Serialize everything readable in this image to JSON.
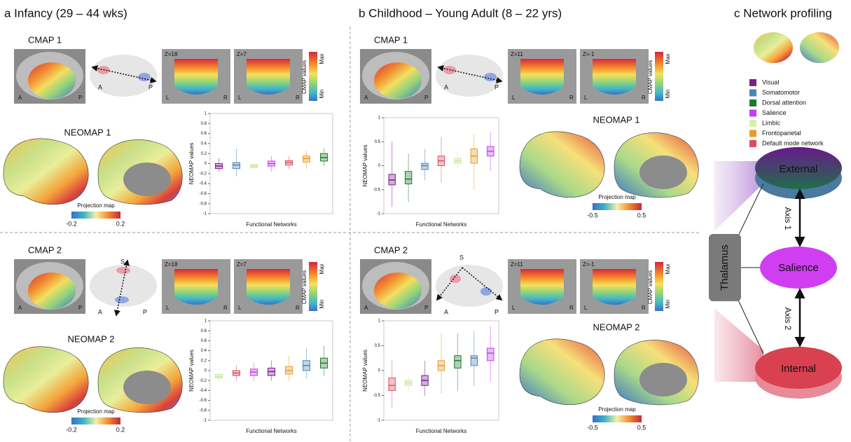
{
  "panels": [
    {
      "title": "a Infancy (29 – 44 wks)"
    },
    {
      "title": "b Childhood – Young Adult (8 – 22 yrs)"
    },
    {
      "title": "c Network profiling"
    }
  ],
  "labels": {
    "cmap1": "CMAP 1",
    "cmap2": "CMAP 2",
    "neomap1": "NEOMAP 1",
    "neomap2": "NEOMAP 2",
    "anterior": "A",
    "posterior": "P",
    "superior": "S",
    "left": "L",
    "right": "R",
    "cmap_values": "CMAP values",
    "max": "Max",
    "min": "Min",
    "projection_map": "Projection map"
  },
  "slices": {
    "a": [
      "Z=18",
      "Z=7"
    ],
    "b": [
      "Z=11",
      "Z=-1"
    ]
  },
  "colorbars": {
    "a": [
      -0.2,
      0.2
    ],
    "b": [
      -0.5,
      0.5
    ]
  },
  "networks": [
    {
      "name": "Visual",
      "color": "#7a1f8c"
    },
    {
      "name": "Somatomotor",
      "color": "#4a86b4"
    },
    {
      "name": "Dorsal attention",
      "color": "#1f7a2e"
    },
    {
      "name": "Salience",
      "color": "#c43ef0"
    },
    {
      "name": "Limbic",
      "color": "#dbeea8"
    },
    {
      "name": "Frontoparietal",
      "color": "#e99a2c"
    },
    {
      "name": "Default mode network",
      "color": "#d9505e"
    }
  ],
  "profiling": {
    "external": "External",
    "salience": "Salience",
    "internal": "Internal",
    "thalamus": "Thalamus",
    "axis1": "Axis 1",
    "axis2": "Axis 2"
  },
  "chart_data": [
    {
      "type": "box",
      "y_label": "NEOMAP values",
      "x_label": "Functional Networks",
      "ylim": [
        -1,
        1
      ],
      "yticks": [
        -1,
        -0.8,
        -0.6,
        -0.4,
        -0.2,
        0,
        0.2,
        0.4,
        0.6,
        0.8,
        1
      ],
      "boxes": [
        {
          "color": "#7a1f8c",
          "whislo": -0.15,
          "q1": -0.1,
          "med": -0.05,
          "q3": 0,
          "whishi": 0.1
        },
        {
          "color": "#4a86b4",
          "whislo": -0.25,
          "q1": -0.1,
          "med": -0.03,
          "q3": 0.02,
          "whishi": 0.3
        },
        {
          "color": "#c9e89a",
          "whislo": -0.1,
          "q1": -0.08,
          "med": -0.05,
          "q3": -0.02,
          "whishi": 0
        },
        {
          "color": "#c43ef0",
          "whislo": -0.15,
          "q1": -0.05,
          "med": 0,
          "q3": 0.05,
          "whishi": 0.15
        },
        {
          "color": "#d9505e",
          "whislo": -0.1,
          "q1": -0.03,
          "med": 0.02,
          "q3": 0.06,
          "whishi": 0.15
        },
        {
          "color": "#e99a2c",
          "whislo": -0.1,
          "q1": 0.03,
          "med": 0.1,
          "q3": 0.15,
          "whishi": 0.25
        },
        {
          "color": "#1f7a2e",
          "whislo": -0.05,
          "q1": 0.05,
          "med": 0.12,
          "q3": 0.2,
          "whishi": 0.3
        }
      ]
    },
    {
      "type": "box",
      "y_label": "NEOMAP values",
      "x_label": "Functional Networks",
      "ylim": [
        -1,
        1
      ],
      "yticks": [
        -1,
        -0.5,
        0,
        0.5,
        1
      ],
      "boxes": [
        {
          "color": "#7a1f8c",
          "whislo": -0.85,
          "q1": -0.4,
          "med": -0.3,
          "q3": -0.18,
          "whishi": 0.5
        },
        {
          "color": "#1f7a2e",
          "whislo": -0.75,
          "q1": -0.38,
          "med": -0.28,
          "q3": -0.12,
          "whishi": 0.25
        },
        {
          "color": "#4a86b4",
          "whislo": -0.3,
          "q1": -0.08,
          "med": 0,
          "q3": 0.05,
          "whishi": 0.35
        },
        {
          "color": "#d9505e",
          "whislo": -0.35,
          "q1": 0,
          "med": 0.1,
          "q3": 0.2,
          "whishi": 0.6
        },
        {
          "color": "#c9e89a",
          "whislo": -0.05,
          "q1": 0.05,
          "med": 0.1,
          "q3": 0.15,
          "whishi": 0.3
        },
        {
          "color": "#e99a2c",
          "whislo": -0.5,
          "q1": 0.05,
          "med": 0.2,
          "q3": 0.35,
          "whishi": 0.65
        },
        {
          "color": "#c43ef0",
          "whislo": -0.1,
          "q1": 0.2,
          "med": 0.3,
          "q3": 0.4,
          "whishi": 0.7
        }
      ]
    },
    {
      "type": "box",
      "y_label": "NEOMAP values",
      "x_label": "Functional Networks",
      "ylim": [
        -1,
        1
      ],
      "yticks": [
        -1,
        -0.8,
        -0.6,
        -0.4,
        -0.2,
        0,
        0.2,
        0.4,
        0.6,
        0.8,
        1
      ],
      "boxes": [
        {
          "color": "#c9e89a",
          "whislo": -0.2,
          "q1": -0.15,
          "med": -0.12,
          "q3": -0.08,
          "whishi": -0.05
        },
        {
          "color": "#d9505e",
          "whislo": -0.2,
          "q1": -0.1,
          "med": -0.05,
          "q3": 0,
          "whishi": 0.1
        },
        {
          "color": "#c43ef0",
          "whislo": -0.2,
          "q1": -0.1,
          "med": -0.03,
          "q3": 0.03,
          "whishi": 0.15
        },
        {
          "color": "#7a1f8c",
          "whislo": -0.2,
          "q1": -0.1,
          "med": -0.02,
          "q3": 0.05,
          "whishi": 0.2
        },
        {
          "color": "#e99a2c",
          "whislo": -0.2,
          "q1": -0.07,
          "med": 0,
          "q3": 0.08,
          "whishi": 0.3
        },
        {
          "color": "#4a86b4",
          "whislo": -0.15,
          "q1": 0,
          "med": 0.1,
          "q3": 0.2,
          "whishi": 0.45
        },
        {
          "color": "#1f7a2e",
          "whislo": -0.1,
          "q1": 0.05,
          "med": 0.15,
          "q3": 0.25,
          "whishi": 0.5
        }
      ]
    },
    {
      "type": "box",
      "y_label": "NEOMAP values",
      "x_label": "Functional Networks",
      "ylim": [
        -1,
        1
      ],
      "yticks": [
        -1,
        -0.5,
        0,
        0.5,
        1
      ],
      "boxes": [
        {
          "color": "#d9505e",
          "whislo": -0.75,
          "q1": -0.4,
          "med": -0.3,
          "q3": -0.15,
          "whishi": 0.2
        },
        {
          "color": "#c9e89a",
          "whislo": -0.4,
          "q1": -0.3,
          "med": -0.25,
          "q3": -0.2,
          "whishi": -0.1
        },
        {
          "color": "#7a1f8c",
          "whislo": -0.5,
          "q1": -0.3,
          "med": -0.2,
          "q3": -0.1,
          "whishi": 0.2
        },
        {
          "color": "#e99a2c",
          "whislo": -0.45,
          "q1": 0,
          "med": 0.1,
          "q3": 0.2,
          "whishi": 0.75
        },
        {
          "color": "#1f7a2e",
          "whislo": -0.4,
          "q1": 0.05,
          "med": 0.2,
          "q3": 0.3,
          "whishi": 0.75
        },
        {
          "color": "#4a86b4",
          "whislo": -0.3,
          "q1": 0.1,
          "med": 0.25,
          "q3": 0.3,
          "whishi": 0.8
        },
        {
          "color": "#c43ef0",
          "whislo": -0.2,
          "q1": 0.2,
          "med": 0.35,
          "q3": 0.45,
          "whishi": 0.9
        }
      ]
    }
  ]
}
